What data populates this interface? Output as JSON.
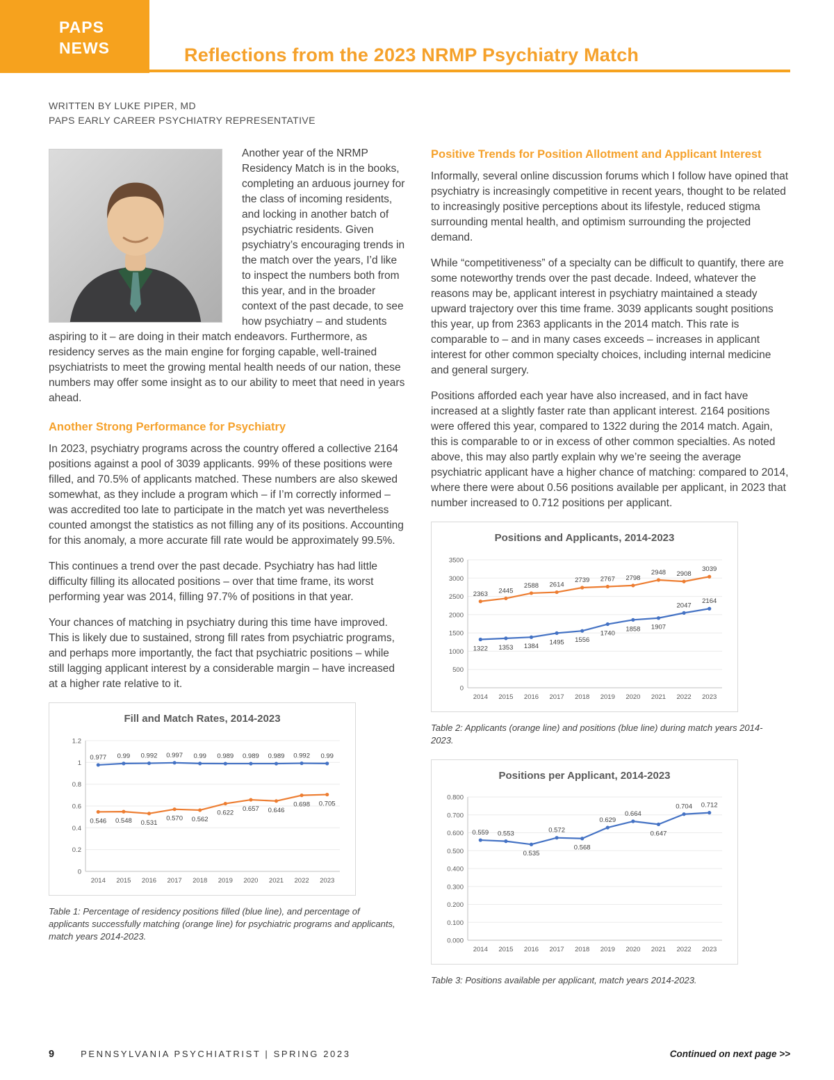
{
  "page": {
    "brand_line1": "PAPS",
    "brand_line2": "NEWS",
    "title": "Reflections from the 2023 NRMP Psychiatry Match",
    "byline_1": "WRITTEN BY LUKE PIPER, MD",
    "byline_2": "PAPS EARLY CAREER PSYCHIATRY REPRESENTATIVE",
    "footer": {
      "page_number": "9",
      "journal": "PENNSYLVANIA PSYCHIATRIST  |  SPRING 2023",
      "continued": "Continued on next page >>"
    }
  },
  "colors": {
    "accent_orange": "#F6A21E",
    "chart_blue": "#4472C4",
    "chart_orange": "#ED7D31"
  },
  "left_column": {
    "intro": "Another year of the NRMP Residency Match is in the books, completing an arduous journey for the class of incoming residents, and locking in another batch of psychiatric residents. Given psychiatry’s encouraging trends in the match over the years, I’d like to inspect the numbers both from this year, and in the broader context of the past decade, to see how psychiatry – and students aspiring to it – are doing in their match endeavors. Furthermore, as residency serves as the main engine for forging capable, well-trained psychiatrists to meet the growing mental health needs of our nation, these numbers may offer some insight as to our ability to meet that need in years ahead.",
    "section_heading": "Another Strong Performance for Psychiatry",
    "paragraphs": [
      "In 2023, psychiatry programs across the country offered a collective 2164 positions against a pool of 3039 applicants. 99% of these positions were filled, and 70.5% of applicants matched. These numbers are also skewed somewhat, as they include a program which – if I’m correctly informed – was accredited too late to participate in the match yet was nevertheless counted amongst the statistics as not filling any of its positions. Accounting for this anomaly, a more accurate fill rate would be approximately 99.5%.",
      "This continues a trend over the past decade. Psychiatry has had little difficulty filling its allocated positions – over that time frame, its worst performing year was 2014, filling 97.7% of positions in that year.",
      "Your chances of matching in psychiatry during this time have improved. This is likely due to sustained, strong fill rates from psychiatric programs, and perhaps more importantly, the fact that psychiatric positions – while still lagging applicant interest by a considerable margin – have increased at a higher rate relative to it."
    ],
    "table1_caption": "Table 1: Percentage of residency positions filled (blue line), and percentage of applicants successfully matching (orange line) for psychiatric programs and applicants, match years 2014-2023."
  },
  "right_column": {
    "section_heading": "Positive Trends for Position Allotment and Applicant Interest",
    "paragraphs": [
      "Informally, several online discussion forums which I follow have opined that psychiatry is increasingly competitive in recent years, thought to be related to increasingly positive perceptions about its lifestyle, reduced stigma surrounding mental health, and optimism surrounding the projected demand.",
      "While “competitiveness” of a specialty can be difficult to quantify, there are some noteworthy trends over the past decade. Indeed, whatever the reasons may be, applicant interest in psychiatry maintained a steady upward trajectory over this time frame. 3039 applicants sought positions this year, up from 2363 applicants in the 2014 match. This rate is comparable to – and in many cases exceeds – increases in applicant interest for other common specialty choices, including internal medicine and general surgery.",
      "Positions afforded each year have also increased, and in fact have increased at a slightly faster rate than applicant interest. 2164 positions were offered this year, compared to 1322 during the 2014 match. Again, this is comparable to or in excess of other common specialties. As noted above, this may also partly explain why we’re seeing the average psychiatric applicant have a higher chance of matching: compared to 2014, where there were about 0.56 positions available per applicant, in 2023 that number increased to 0.712 positions per applicant."
    ],
    "table2_caption": "Table 2: Applicants (orange line) and positions (blue line) during match years 2014-2023.",
    "table3_caption": "Table 3: Positions available per applicant, match years 2014-2023."
  },
  "chart_data": [
    {
      "type": "line",
      "title": "Fill and Match Rates, 2014-2023",
      "categories": [
        "2014",
        "2015",
        "2016",
        "2017",
        "2018",
        "2019",
        "2020",
        "2021",
        "2022",
        "2023"
      ],
      "series": [
        {
          "name": "Percentage of positions filled",
          "color": "#4472C4",
          "values": [
            0.977,
            0.99,
            0.992,
            0.997,
            0.99,
            0.989,
            0.989,
            0.989,
            0.992,
            0.99
          ],
          "labels": [
            "0.977",
            "0.99",
            "0.992",
            "0.997",
            "0.99",
            "0.989",
            "0.989",
            "0.989",
            "0.992",
            "0.99"
          ],
          "label_side": "above"
        },
        {
          "name": "Percentage of applicants matched",
          "color": "#ED7D31",
          "values": [
            0.546,
            0.548,
            0.531,
            0.57,
            0.562,
            0.622,
            0.657,
            0.646,
            0.698,
            0.705
          ],
          "labels": [
            "0.546",
            "0.548",
            "0.531",
            "0.570",
            "0.562",
            "0.622",
            "0.657",
            "0.646",
            "0.698",
            "0.705"
          ],
          "label_side": "below"
        }
      ],
      "ylim": [
        0,
        1.2
      ],
      "yticks": [
        "0",
        "0.2",
        "0.4",
        "0.6",
        "0.8",
        "1",
        "1.2"
      ],
      "grid": true,
      "legend": "none"
    },
    {
      "type": "line",
      "title": "Positions and Applicants, 2014-2023",
      "categories": [
        "2014",
        "2015",
        "2016",
        "2017",
        "2018",
        "2019",
        "2020",
        "2021",
        "2022",
        "2023"
      ],
      "series": [
        {
          "name": "Applicants",
          "color": "#ED7D31",
          "values": [
            2363,
            2445,
            2588,
            2614,
            2739,
            2767,
            2798,
            2948,
            2908,
            3039
          ],
          "labels": [
            "2363",
            "2445",
            "2588",
            "2614",
            "2739",
            "2767",
            "2798",
            "2948",
            "2908",
            "3039"
          ],
          "label_side": "above"
        },
        {
          "name": "Positions",
          "color": "#4472C4",
          "values": [
            1322,
            1353,
            1384,
            1495,
            1556,
            1740,
            1858,
            1907,
            2047,
            2164
          ],
          "labels": [
            "1322",
            "1353",
            "1384",
            "1495",
            "1556",
            "1740",
            "1858",
            "1907",
            "2047",
            "2164"
          ],
          "label_side": "below",
          "label_side_overrides": {
            "8": "above",
            "9": "above"
          }
        }
      ],
      "ylim": [
        0,
        3500
      ],
      "yticks": [
        "0",
        "500",
        "1000",
        "1500",
        "2000",
        "2500",
        "3000",
        "3500"
      ],
      "grid": true,
      "legend": "none"
    },
    {
      "type": "line",
      "title": "Positions per Applicant, 2014-2023",
      "categories": [
        "2014",
        "2015",
        "2016",
        "2017",
        "2018",
        "2019",
        "2020",
        "2021",
        "2022",
        "2023"
      ],
      "series": [
        {
          "name": "Positions per applicant",
          "color": "#4472C4",
          "values": [
            0.559,
            0.553,
            0.535,
            0.572,
            0.568,
            0.629,
            0.664,
            0.647,
            0.704,
            0.712
          ],
          "labels": [
            "0.559",
            "0.553",
            "0.535",
            "0.572",
            "0.568",
            "0.629",
            "0.664",
            "0.647",
            "0.704",
            "0.712"
          ],
          "label_side": "above",
          "label_side_overrides": {
            "2": "below",
            "4": "below",
            "7": "below"
          }
        }
      ],
      "ylim": [
        0,
        0.8
      ],
      "yticks": [
        "0.000",
        "0.100",
        "0.200",
        "0.300",
        "0.400",
        "0.500",
        "0.600",
        "0.700",
        "0.800"
      ],
      "grid": true,
      "legend": "none"
    }
  ]
}
